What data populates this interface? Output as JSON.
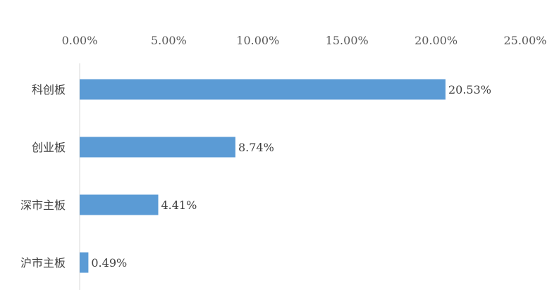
{
  "chart_data": {
    "type": "bar",
    "orientation": "horizontal",
    "title": "",
    "xlabel": "",
    "ylabel": "",
    "x_axis_position": "top",
    "grid": false,
    "legend": "none",
    "xlim": [
      0,
      25
    ],
    "x_ticks": [
      "0.00%",
      "5.00%",
      "10.00%",
      "15.00%",
      "20.00%",
      "25.00%"
    ],
    "categories": [
      "科创板",
      "创业板",
      "深市主板",
      "沪市主板"
    ],
    "values": [
      20.53,
      8.74,
      4.41,
      0.49
    ],
    "data_labels": [
      "20.53%",
      "8.74%",
      "4.41%",
      "0.49%"
    ],
    "bar_color": "#5b9bd5",
    "axis_color": "#d9d9d9"
  }
}
